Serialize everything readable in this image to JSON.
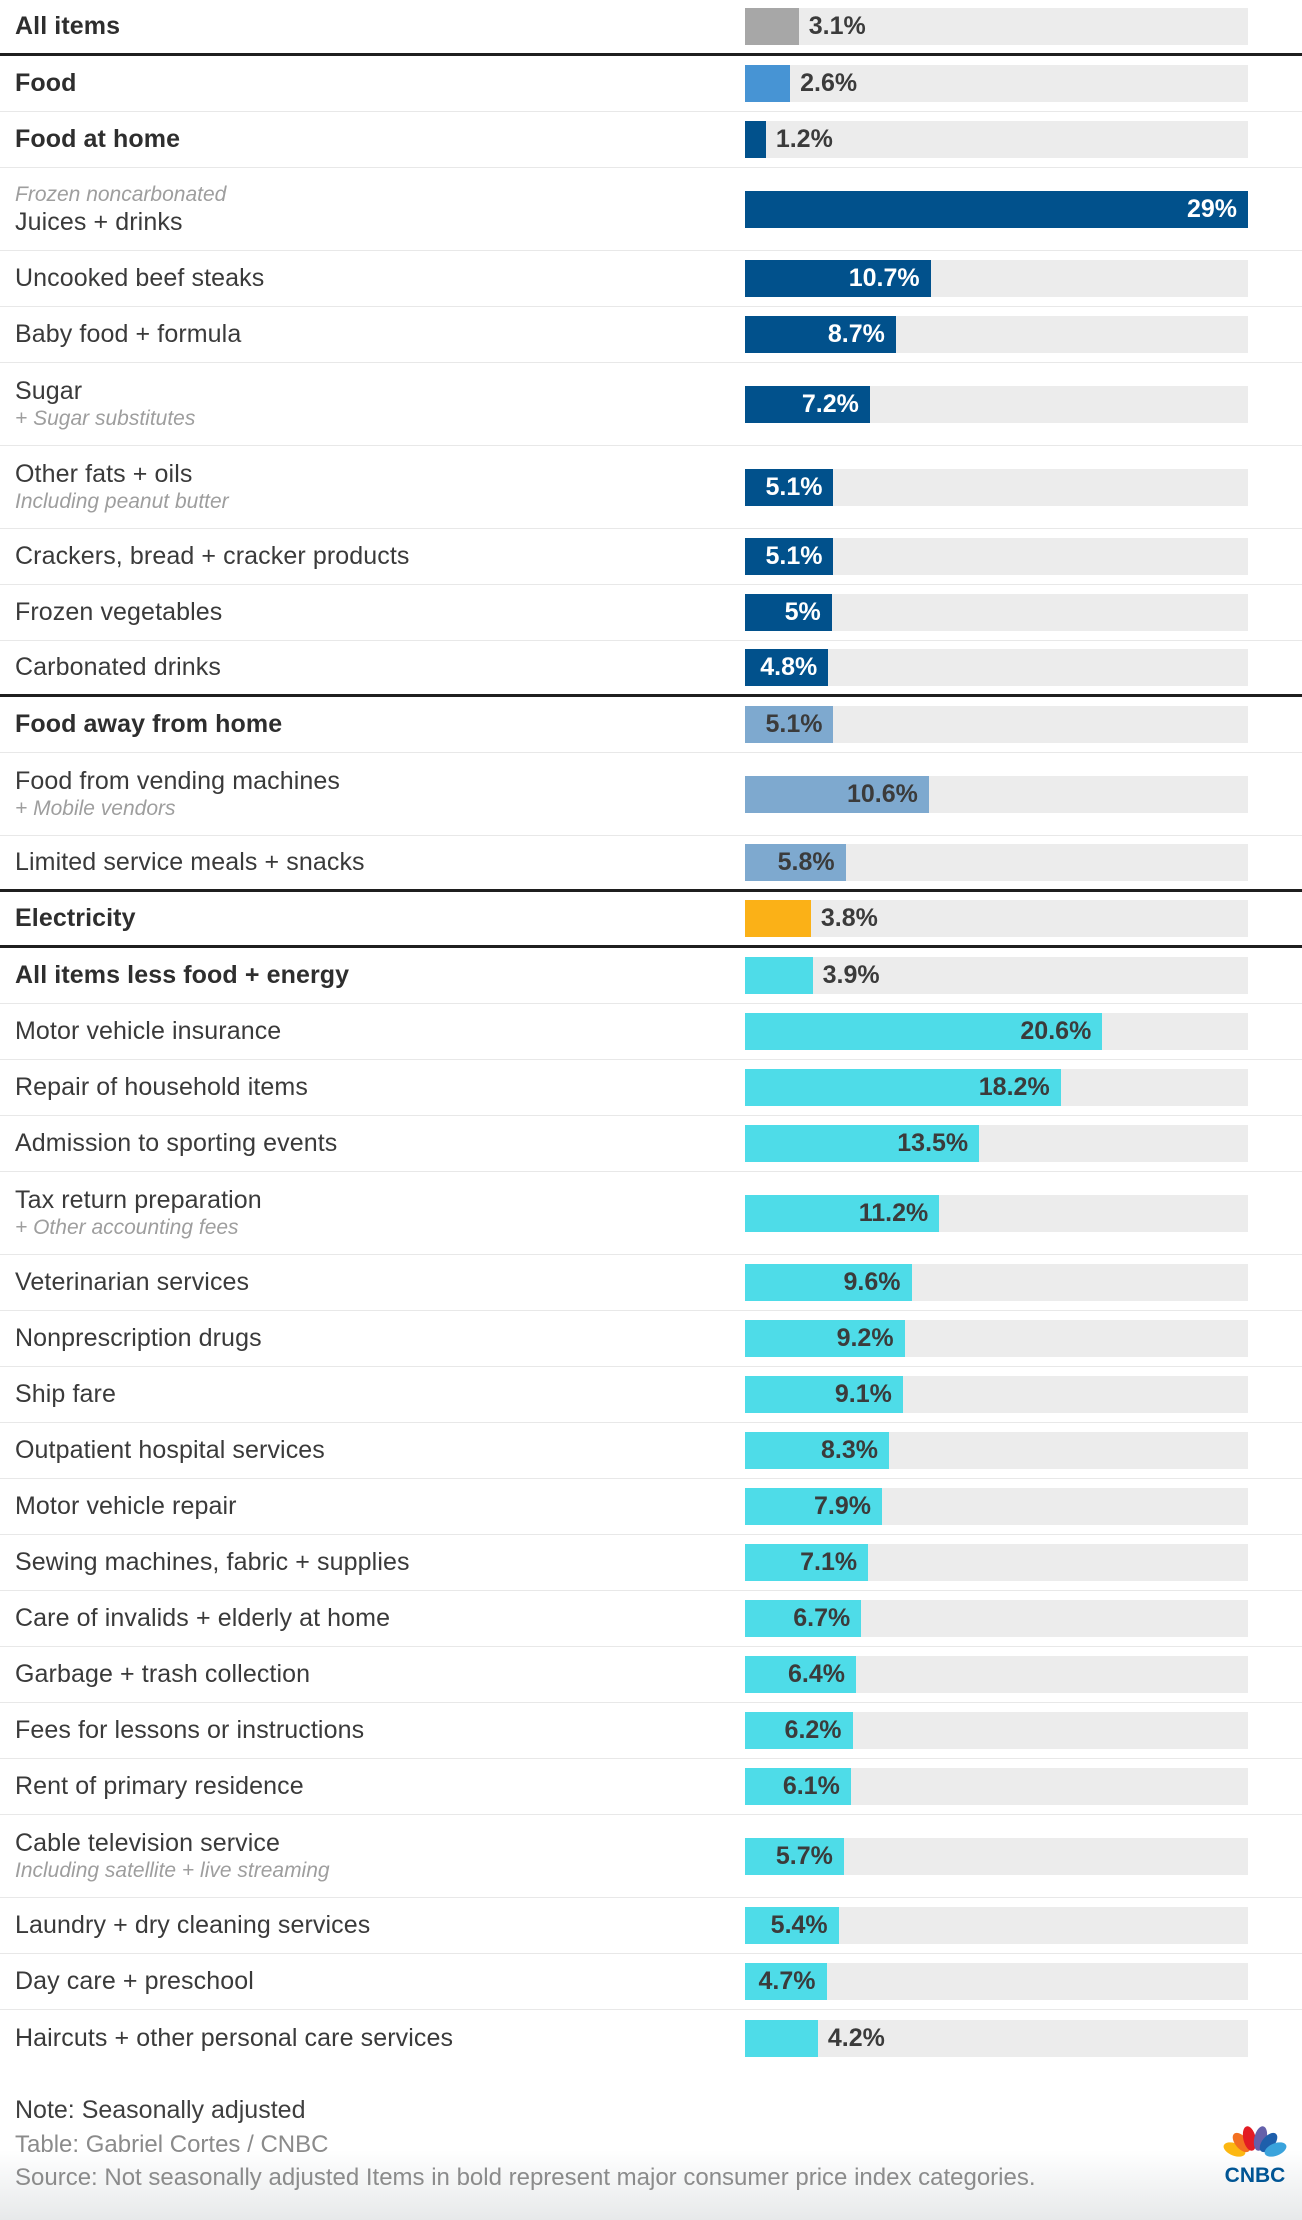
{
  "colors": {
    "track": "#ececec",
    "separator_black": "#1f1f1f",
    "separator_light": "#e8e8e8",
    "groups": {
      "all_items": "#a7a7a7",
      "food": "#4794d4",
      "food_at_home": "#01518c",
      "food_away": "#7ea9cf",
      "electricity": "#fbb117",
      "core": "#4edce8"
    },
    "value_text_dark": "#3b3b3b",
    "value_text_white": "#ffffff",
    "logo_wordmark": "#005594",
    "peacock": [
      "#fcb711",
      "#f37021",
      "#e31b23",
      "#6460aa",
      "#1e5fab",
      "#3aa3dc"
    ]
  },
  "axis": {
    "max_value": 29,
    "unit": "%"
  },
  "rows": [
    {
      "label": "All items",
      "sublabel": "",
      "sub_pos": "",
      "value": 3.1,
      "display": "3.1%",
      "group": "all_items",
      "bold": true,
      "sep": "black",
      "val_pos": "out"
    },
    {
      "label": "Food",
      "sublabel": "",
      "sub_pos": "",
      "value": 2.6,
      "display": "2.6%",
      "group": "food",
      "bold": true,
      "sep": "light",
      "val_pos": "out"
    },
    {
      "label": "Food at home",
      "sublabel": "",
      "sub_pos": "",
      "value": 1.2,
      "display": "1.2%",
      "group": "food_at_home",
      "bold": true,
      "sep": "light",
      "val_pos": "out"
    },
    {
      "label": "Juices + drinks",
      "sublabel": "Frozen noncarbonated",
      "sub_pos": "above",
      "value": 29,
      "display": "29%",
      "group": "food_at_home",
      "bold": false,
      "sep": "light",
      "val_pos": "in-white"
    },
    {
      "label": "Uncooked beef steaks",
      "sublabel": "",
      "sub_pos": "",
      "value": 10.7,
      "display": "10.7%",
      "group": "food_at_home",
      "bold": false,
      "sep": "light",
      "val_pos": "in-white"
    },
    {
      "label": "Baby food + formula",
      "sublabel": "",
      "sub_pos": "",
      "value": 8.7,
      "display": "8.7%",
      "group": "food_at_home",
      "bold": false,
      "sep": "light",
      "val_pos": "in-white"
    },
    {
      "label": "Sugar",
      "sublabel": "+ Sugar substitutes",
      "sub_pos": "below",
      "value": 7.2,
      "display": "7.2%",
      "group": "food_at_home",
      "bold": false,
      "sep": "light",
      "val_pos": "in-white"
    },
    {
      "label": "Other fats + oils",
      "sublabel": "Including peanut butter",
      "sub_pos": "below",
      "value": 5.1,
      "display": "5.1%",
      "group": "food_at_home",
      "bold": false,
      "sep": "light",
      "val_pos": "in-white"
    },
    {
      "label": "Crackers, bread + cracker products",
      "sublabel": "",
      "sub_pos": "",
      "value": 5.1,
      "display": "5.1%",
      "group": "food_at_home",
      "bold": false,
      "sep": "light",
      "val_pos": "in-white"
    },
    {
      "label": "Frozen vegetables",
      "sublabel": "",
      "sub_pos": "",
      "value": 5,
      "display": "5%",
      "group": "food_at_home",
      "bold": false,
      "sep": "light",
      "val_pos": "in-white"
    },
    {
      "label": "Carbonated drinks",
      "sublabel": "",
      "sub_pos": "",
      "value": 4.8,
      "display": "4.8%",
      "group": "food_at_home",
      "bold": false,
      "sep": "black",
      "val_pos": "in-white"
    },
    {
      "label": "Food away from home",
      "sublabel": "",
      "sub_pos": "",
      "value": 5.1,
      "display": "5.1%",
      "group": "food_away",
      "bold": true,
      "sep": "light",
      "val_pos": "in-dark"
    },
    {
      "label": "Food from vending machines",
      "sublabel": "+ Mobile vendors",
      "sub_pos": "below",
      "value": 10.6,
      "display": "10.6%",
      "group": "food_away",
      "bold": false,
      "sep": "light",
      "val_pos": "in-dark"
    },
    {
      "label": "Limited service meals + snacks",
      "sublabel": "",
      "sub_pos": "",
      "value": 5.8,
      "display": "5.8%",
      "group": "food_away",
      "bold": false,
      "sep": "black",
      "val_pos": "in-dark"
    },
    {
      "label": "Electricity",
      "sublabel": "",
      "sub_pos": "",
      "value": 3.8,
      "display": "3.8%",
      "group": "electricity",
      "bold": true,
      "sep": "black",
      "val_pos": "out"
    },
    {
      "label": "All items less food + energy",
      "sublabel": "",
      "sub_pos": "",
      "value": 3.9,
      "display": "3.9%",
      "group": "core",
      "bold": true,
      "sep": "light",
      "val_pos": "out"
    },
    {
      "label": "Motor vehicle insurance",
      "sublabel": "",
      "sub_pos": "",
      "value": 20.6,
      "display": "20.6%",
      "group": "core",
      "bold": false,
      "sep": "light",
      "val_pos": "in-dark"
    },
    {
      "label": "Repair of household items",
      "sublabel": "",
      "sub_pos": "",
      "value": 18.2,
      "display": "18.2%",
      "group": "core",
      "bold": false,
      "sep": "light",
      "val_pos": "in-dark"
    },
    {
      "label": "Admission to sporting events",
      "sublabel": "",
      "sub_pos": "",
      "value": 13.5,
      "display": "13.5%",
      "group": "core",
      "bold": false,
      "sep": "light",
      "val_pos": "in-dark"
    },
    {
      "label": "Tax return preparation",
      "sublabel": "+ Other accounting fees",
      "sub_pos": "below",
      "value": 11.2,
      "display": "11.2%",
      "group": "core",
      "bold": false,
      "sep": "light",
      "val_pos": "in-dark"
    },
    {
      "label": "Veterinarian services",
      "sublabel": "",
      "sub_pos": "",
      "value": 9.6,
      "display": "9.6%",
      "group": "core",
      "bold": false,
      "sep": "light",
      "val_pos": "in-dark"
    },
    {
      "label": "Nonprescription drugs",
      "sublabel": "",
      "sub_pos": "",
      "value": 9.2,
      "display": "9.2%",
      "group": "core",
      "bold": false,
      "sep": "light",
      "val_pos": "in-dark"
    },
    {
      "label": "Ship fare",
      "sublabel": "",
      "sub_pos": "",
      "value": 9.1,
      "display": "9.1%",
      "group": "core",
      "bold": false,
      "sep": "light",
      "val_pos": "in-dark"
    },
    {
      "label": "Outpatient hospital services",
      "sublabel": "",
      "sub_pos": "",
      "value": 8.3,
      "display": "8.3%",
      "group": "core",
      "bold": false,
      "sep": "light",
      "val_pos": "in-dark"
    },
    {
      "label": "Motor vehicle repair",
      "sublabel": "",
      "sub_pos": "",
      "value": 7.9,
      "display": "7.9%",
      "group": "core",
      "bold": false,
      "sep": "light",
      "val_pos": "in-dark"
    },
    {
      "label": "Sewing machines, fabric + supplies",
      "sublabel": "",
      "sub_pos": "",
      "value": 7.1,
      "display": "7.1%",
      "group": "core",
      "bold": false,
      "sep": "light",
      "val_pos": "in-dark"
    },
    {
      "label": "Care of invalids + elderly at home",
      "sublabel": "",
      "sub_pos": "",
      "value": 6.7,
      "display": "6.7%",
      "group": "core",
      "bold": false,
      "sep": "light",
      "val_pos": "in-dark"
    },
    {
      "label": "Garbage + trash collection",
      "sublabel": "",
      "sub_pos": "",
      "value": 6.4,
      "display": "6.4%",
      "group": "core",
      "bold": false,
      "sep": "light",
      "val_pos": "in-dark"
    },
    {
      "label": "Fees for lessons or instructions",
      "sublabel": "",
      "sub_pos": "",
      "value": 6.2,
      "display": "6.2%",
      "group": "core",
      "bold": false,
      "sep": "light",
      "val_pos": "in-dark"
    },
    {
      "label": "Rent of primary residence",
      "sublabel": "",
      "sub_pos": "",
      "value": 6.1,
      "display": "6.1%",
      "group": "core",
      "bold": false,
      "sep": "light",
      "val_pos": "in-dark"
    },
    {
      "label": "Cable television service",
      "sublabel": "Including satellite + live streaming",
      "sub_pos": "below",
      "value": 5.7,
      "display": "5.7%",
      "group": "core",
      "bold": false,
      "sep": "light",
      "val_pos": "in-dark"
    },
    {
      "label": "Laundry + dry cleaning services",
      "sublabel": "",
      "sub_pos": "",
      "value": 5.4,
      "display": "5.4%",
      "group": "core",
      "bold": false,
      "sep": "light",
      "val_pos": "in-dark"
    },
    {
      "label": "Day care + preschool",
      "sublabel": "",
      "sub_pos": "",
      "value": 4.7,
      "display": "4.7%",
      "group": "core",
      "bold": false,
      "sep": "light",
      "val_pos": "in-dark"
    },
    {
      "label": "Haircuts + other personal care services",
      "sublabel": "",
      "sub_pos": "",
      "value": 4.2,
      "display": "4.2%",
      "group": "core",
      "bold": false,
      "sep": "none",
      "val_pos": "out"
    }
  ],
  "footer": {
    "note": "Note: Seasonally adjusted",
    "table_credit": "Table: Gabriel Cortes / CNBC",
    "source": "Source: Not seasonally adjusted Items in bold represent major consumer price index categories.",
    "logo_text": "CNBC"
  },
  "chart_data": {
    "type": "bar",
    "orientation": "horizontal",
    "unit": "%",
    "xlim": [
      0,
      29
    ],
    "grid": false,
    "legend": false,
    "categories": [
      "All items",
      "Food",
      "Food at home",
      "Juices + drinks",
      "Uncooked beef steaks",
      "Baby food + formula",
      "Sugar",
      "Other fats + oils",
      "Crackers, bread + cracker products",
      "Frozen vegetables",
      "Carbonated drinks",
      "Food away from home",
      "Food from vending machines",
      "Limited service meals + snacks",
      "Electricity",
      "All items less food + energy",
      "Motor vehicle insurance",
      "Repair of household items",
      "Admission to sporting events",
      "Tax return preparation",
      "Veterinarian services",
      "Nonprescription drugs",
      "Ship fare",
      "Outpatient hospital services",
      "Motor vehicle repair",
      "Sewing machines, fabric + supplies",
      "Care of invalids + elderly at home",
      "Garbage + trash collection",
      "Fees for lessons or instructions",
      "Rent of primary residence",
      "Cable television service",
      "Laundry + dry cleaning services",
      "Day care + preschool",
      "Haircuts + other personal care services"
    ],
    "values": [
      3.1,
      2.6,
      1.2,
      29,
      10.7,
      8.7,
      7.2,
      5.1,
      5.1,
      5,
      4.8,
      5.1,
      10.6,
      5.8,
      3.8,
      3.9,
      20.6,
      18.2,
      13.5,
      11.2,
      9.6,
      9.2,
      9.1,
      8.3,
      7.9,
      7.1,
      6.7,
      6.4,
      6.2,
      6.1,
      5.7,
      5.4,
      4.7,
      4.2
    ],
    "groups": [
      "all_items",
      "food",
      "food_at_home",
      "food_at_home",
      "food_at_home",
      "food_at_home",
      "food_at_home",
      "food_at_home",
      "food_at_home",
      "food_at_home",
      "food_at_home",
      "food_away",
      "food_away",
      "food_away",
      "electricity",
      "core",
      "core",
      "core",
      "core",
      "core",
      "core",
      "core",
      "core",
      "core",
      "core",
      "core",
      "core",
      "core",
      "core",
      "core",
      "core",
      "core",
      "core",
      "core"
    ],
    "bold_major_categories": [
      "All items",
      "Food",
      "Food at home",
      "Food away from home",
      "Electricity",
      "All items less food + energy"
    ],
    "annotations": {
      "Juices + drinks": "Frozen noncarbonated",
      "Sugar": "+ Sugar substitutes",
      "Other fats + oils": "Including peanut butter",
      "Food from vending machines": "+ Mobile vendors",
      "Tax return preparation": "+ Other accounting fees",
      "Cable television service": "Including satellite + live streaming"
    }
  }
}
